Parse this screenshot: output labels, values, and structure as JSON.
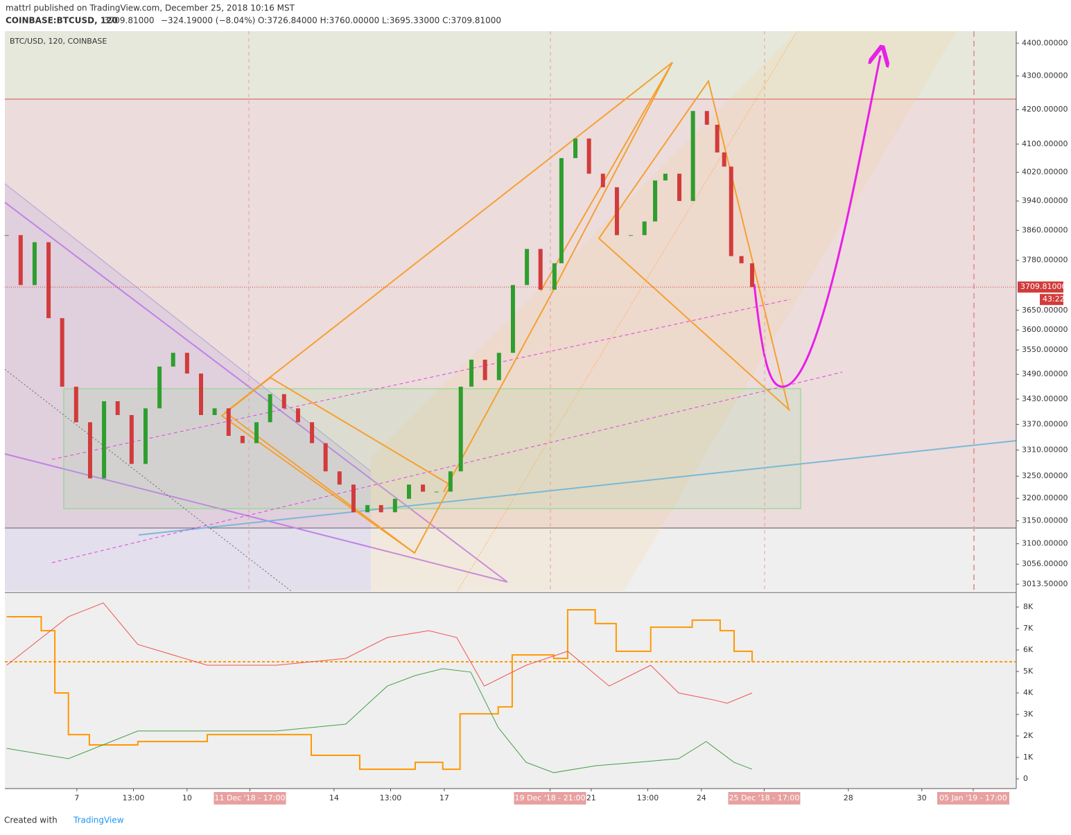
{
  "header": {
    "publisher_line": "mattrl published on TradingView.com, December 25, 2018 10:16 MST",
    "symbol": "COINBASE:BTCUSD, 120",
    "last": "3709.81000",
    "change": "−324.19000 (−8.04%)",
    "ohlc": "O:3726.84000 H:3760.00000 L:3695.33000 C:3709.81000"
  },
  "footer": {
    "created": "Created with",
    "brand": "TradingView"
  },
  "chart_data": [
    {
      "type": "candlestick",
      "title": "BTC/USD, 120, COINBASE",
      "up_color": "#2e9e2e",
      "down_color": "#d23b3b",
      "log": true,
      "x": [
        5.09,
        5.47,
        5.85,
        6.23,
        6.6,
        6.98,
        7.36,
        7.74,
        8.11,
        8.49,
        8.87,
        9.25,
        9.62,
        10.0,
        10.38,
        10.75,
        11.13,
        11.51,
        11.89,
        12.26,
        12.64,
        13.02,
        13.4,
        13.77,
        14.15,
        14.53,
        14.91,
        15.28,
        15.66,
        16.04,
        16.42,
        16.79,
        17.17,
        17.45,
        17.74,
        18.11,
        18.49,
        18.87,
        19.25,
        19.62,
        20.0,
        20.19,
        20.57,
        20.94,
        21.32,
        21.7,
        22.08,
        22.45,
        22.74,
        23.02,
        23.4,
        23.77,
        24.15,
        24.43,
        24.62,
        24.81,
        25.09,
        25.38
      ],
      "values": [
        3847,
        3715,
        3828,
        3630,
        3460,
        3375,
        3245,
        3425,
        3392,
        3278,
        3408,
        3509,
        3543,
        3492,
        3392,
        3408,
        3343,
        3326,
        3375,
        3442,
        3408,
        3375,
        3326,
        3261,
        3231,
        3169,
        3185,
        3169,
        3199,
        3231,
        3215,
        3215,
        3261,
        3460,
        3526,
        3476,
        3543,
        3715,
        3810,
        3703,
        3772,
        4060,
        4116,
        4016,
        3978,
        3847,
        3847,
        3884,
        3997,
        4016,
        3940,
        4196,
        4156,
        4076,
        4036,
        3791,
        3772,
        3709.81
      ],
      "xlim": [
        5.04,
        32.57
      ],
      "xticks": [
        {
          "value": 7,
          "label": "7"
        },
        {
          "value": 8.54,
          "label": "13:00"
        },
        {
          "value": 10,
          "label": "10"
        },
        {
          "value": 11.71,
          "label": "11 Dec '18 - 17:00"
        },
        {
          "value": 14,
          "label": "14"
        },
        {
          "value": 15.54,
          "label": "13:00"
        },
        {
          "value": 17,
          "label": "17"
        },
        {
          "value": 19.88,
          "label": "19 Dec '18 - 21:00"
        },
        {
          "value": 21,
          "label": "21"
        },
        {
          "value": 22.54,
          "label": "13:00"
        },
        {
          "value": 24,
          "label": "24"
        },
        {
          "value": 25.71,
          "label": "25 Dec '18 - 17:00"
        },
        {
          "value": 28,
          "label": "28"
        },
        {
          "value": 30,
          "label": "30"
        },
        {
          "value": 31.4,
          "label": "05 Jan '19 - 17:00"
        }
      ],
      "ylim": [
        2999,
        4437
      ],
      "yticks": [
        {
          "value": 4400,
          "label": "4400.00000"
        },
        {
          "value": 4300,
          "label": "4300.00000"
        },
        {
          "value": 4200,
          "label": "4200.00000"
        },
        {
          "value": 4100,
          "label": "4100.00000"
        },
        {
          "value": 4020,
          "label": "4020.00000"
        },
        {
          "value": 3940,
          "label": "3940.00000"
        },
        {
          "value": 3860,
          "label": "3860.00000"
        },
        {
          "value": 3780,
          "label": "3780.00000"
        },
        {
          "value": 3650,
          "label": "3650.00000"
        },
        {
          "value": 3600,
          "label": "3600.00000"
        },
        {
          "value": 3550,
          "label": "3550.00000"
        },
        {
          "value": 3490,
          "label": "3490.00000"
        },
        {
          "value": 3430,
          "label": "3430.00000"
        },
        {
          "value": 3370,
          "label": "3370.00000"
        },
        {
          "value": 3310,
          "label": "3310.00000"
        },
        {
          "value": 3250,
          "label": "3250.00000"
        },
        {
          "value": 3200,
          "label": "3200.00000"
        },
        {
          "value": 3150,
          "label": "3150.00000"
        },
        {
          "value": 3100,
          "label": "3100.00000"
        },
        {
          "value": 3056,
          "label": "3056.00000"
        },
        {
          "value": 3013.5,
          "label": "3013.50000"
        }
      ],
      "current_price": {
        "value": 3709.81,
        "label": "3709.81000"
      },
      "countdown": "43:22"
    },
    {
      "type": "line",
      "ylim": [
        -450,
        8580
      ],
      "yticks": [
        {
          "value": 8000,
          "label": "8K"
        },
        {
          "value": 7000,
          "label": "7K"
        },
        {
          "value": 6000,
          "label": "6K"
        },
        {
          "value": 5000,
          "label": "5K"
        },
        {
          "value": 4000,
          "label": "4K"
        },
        {
          "value": 3000,
          "label": "3K"
        },
        {
          "value": 2000,
          "label": "2K"
        },
        {
          "value": 1000,
          "label": "1K"
        },
        0
      ],
      "reference_line": 5450,
      "reference_color": "#ff9800",
      "series": [
        {
          "color": "#ff9800",
          "step": true,
          "x": [
            5.09,
            6.03,
            6.4,
            6.77,
            7.34,
            8.66,
            10.55,
            12.43,
            13.38,
            14.7,
            16.21,
            16.96,
            17.43,
            18.47,
            18.85,
            19.98,
            20.36,
            21.11,
            21.68,
            22.62,
            23.75,
            24.51,
            24.89,
            25.38
          ],
          "values": [
            7550,
            6900,
            4000,
            2060,
            1580,
            1740,
            2060,
            2060,
            1100,
            450,
            770,
            450,
            3030,
            3350,
            5770,
            5610,
            7870,
            7230,
            5940,
            7060,
            7390,
            6900,
            5940,
            5450
          ]
        },
        {
          "color": "#ef5350",
          "x": [
            5.09,
            6.77,
            7.72,
            8.66,
            10.55,
            12.43,
            14.32,
            15.45,
            16.58,
            17.34,
            18.09,
            19.23,
            20.36,
            21.49,
            22.62,
            23.38,
            24.32,
            24.7,
            25.38
          ],
          "values": [
            5290,
            7550,
            8190,
            6260,
            5290,
            5290,
            5610,
            6580,
            6900,
            6580,
            4320,
            5290,
            5940,
            4320,
            5290,
            4000,
            3680,
            3520,
            4000
          ]
        },
        {
          "color": "#43a047",
          "x": [
            5.09,
            6.77,
            8.66,
            10.55,
            12.43,
            14.32,
            15.45,
            16.21,
            16.96,
            17.72,
            18.47,
            19.23,
            19.98,
            21.11,
            22.25,
            23.38,
            24.13,
            24.89,
            25.38
          ],
          "values": [
            1420,
            940,
            2230,
            2230,
            2230,
            2550,
            4320,
            4810,
            5130,
            4970,
            2390,
            770,
            290,
            610,
            770,
            940,
            1740,
            770,
            450
          ]
        }
      ]
    }
  ]
}
